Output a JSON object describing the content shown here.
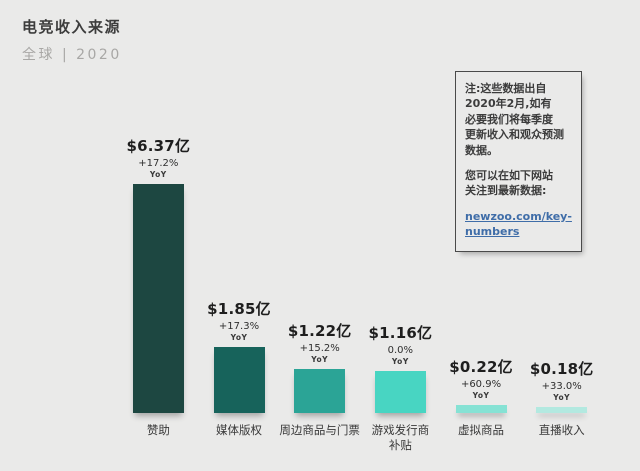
{
  "header": {
    "title": "电竞收入来源",
    "subtitle": "全球 | 2020"
  },
  "note": {
    "paragraph1": "注:这些数据出自\n2020年2月,如有\n必要我们将每季度\n更新收入和观众预测\n数据。",
    "paragraph2": "您可以在如下网站\n关注到最新数据:",
    "link_text": "newzoo.com/key-numbers"
  },
  "colors": {
    "background": "#eaeae9",
    "link": "#3f6da8",
    "title_text": "#3c3c3c",
    "subtitle_text": "#a8a7a5",
    "note_border": "#4a4a4a"
  },
  "chart_data": {
    "type": "bar",
    "title": "电竞收入来源",
    "subtitle": "全球 | 2020",
    "categories": [
      "赞助",
      "媒体版权",
      "周边商品与门票",
      "游戏发行商\n补贴",
      "虚拟商品",
      "直播收入"
    ],
    "values": [
      6.37,
      1.85,
      1.22,
      1.16,
      0.22,
      0.18
    ],
    "value_labels": [
      "$6.37亿",
      "$1.85亿",
      "$1.22亿",
      "$1.16亿",
      "$0.22亿",
      "$0.18亿"
    ],
    "yoy": [
      "+17.2%",
      "+17.3%",
      "+15.2%",
      "0.0%",
      "+60.9%",
      "+33.0%"
    ],
    "ylim": [
      0,
      6.37
    ],
    "grid": false,
    "legend": false,
    "bars": [
      {
        "category": "赞助",
        "value": 6.37,
        "value_label": "$6.37亿",
        "yoy_label": "+17.2%",
        "yoy_caption": "YoY",
        "color": "#1d4741"
      },
      {
        "category": "媒体版权",
        "value": 1.85,
        "value_label": "$1.85亿",
        "yoy_label": "+17.3%",
        "yoy_caption": "YoY",
        "color": "#17635b"
      },
      {
        "category": "周边商品与门票",
        "value": 1.22,
        "value_label": "$1.22亿",
        "yoy_label": "+15.2%",
        "yoy_caption": "YoY",
        "color": "#2ba496"
      },
      {
        "category": "游戏发行商\n补贴",
        "value": 1.16,
        "value_label": "$1.16亿",
        "yoy_label": "0.0%",
        "yoy_caption": "YoY",
        "color": "#48d5c2"
      },
      {
        "category": "虚拟商品",
        "value": 0.22,
        "value_label": "$0.22亿",
        "yoy_label": "+60.9%",
        "yoy_caption": "YoY",
        "color": "#86e2d4"
      },
      {
        "category": "直播收入",
        "value": 0.18,
        "value_label": "$0.18亿",
        "yoy_label": "+33.0%",
        "yoy_caption": "YoY",
        "color": "#b3e9e0"
      }
    ]
  }
}
